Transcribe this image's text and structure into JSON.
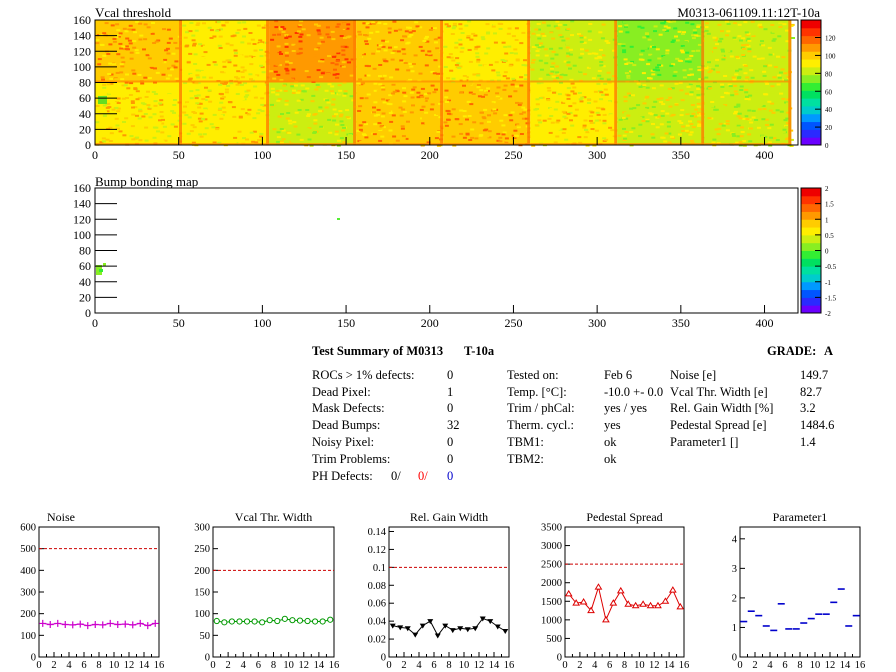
{
  "vcal_map": {
    "title": "Vcal threshold",
    "id_label": "M0313-061109.11:12T-10a",
    "x_ticks": [
      "0",
      "50",
      "100",
      "150",
      "200",
      "250",
      "300",
      "350",
      "400"
    ],
    "y_ticks": [
      "0",
      "20",
      "40",
      "60",
      "80",
      "100",
      "120",
      "140",
      "160"
    ],
    "z_ticks": [
      "0",
      "20",
      "40",
      "60",
      "80",
      "100",
      "120"
    ]
  },
  "bump_map": {
    "title": "Bump bonding map",
    "x_ticks": [
      "0",
      "50",
      "100",
      "150",
      "200",
      "250",
      "300",
      "350",
      "400"
    ],
    "y_ticks": [
      "0",
      "20",
      "40",
      "60",
      "80",
      "100",
      "120",
      "140",
      "160"
    ],
    "z_ticks": [
      "-2",
      "-1.5",
      "-1",
      "-0.5",
      "0",
      "0.5",
      "1",
      "1.5",
      "2"
    ]
  },
  "summary": {
    "title": "Test Summary of M0313",
    "mode": "T-10a",
    "grade_label": "GRADE:",
    "grade": "A",
    "col1": [
      {
        "label": "ROCs > 1% defects:",
        "value": "0"
      },
      {
        "label": "Dead Pixel:",
        "value": "1"
      },
      {
        "label": "Mask Defects:",
        "value": "0"
      },
      {
        "label": "Dead Bumps:",
        "value": "32"
      },
      {
        "label": "Noisy Pixel:",
        "value": "0"
      },
      {
        "label": "Trim Problems:",
        "value": "0"
      }
    ],
    "ph_label": "PH Defects:",
    "ph_values": [
      "0/",
      "0/",
      "0"
    ],
    "ph_colors": [
      "#000000",
      "#ff0000",
      "#0000cc"
    ],
    "col2": [
      {
        "label": "Tested on:",
        "value": "Feb 6"
      },
      {
        "label": "Temp. [°C]:",
        "value": "-10.0 +- 0.0"
      },
      {
        "label": "Trim / phCal:",
        "value": "yes / yes"
      },
      {
        "label": "Therm. cycl.:",
        "value": "yes"
      },
      {
        "label": "TBM1:",
        "value": "ok"
      },
      {
        "label": "TBM2:",
        "value": "ok"
      }
    ],
    "col3": [
      {
        "label": "Noise [e]",
        "value": "149.7"
      },
      {
        "label": "Vcal Thr. Width [e]",
        "value": "82.7"
      },
      {
        "label": "Rel. Gain Width [%]",
        "value": "3.2"
      },
      {
        "label": "Pedestal Spread [e]",
        "value": "1484.6"
      },
      {
        "label": "Parameter1 []",
        "value": "1.4"
      }
    ]
  },
  "chart_data": [
    {
      "type": "scatter",
      "title": "Noise",
      "x": [
        0,
        1,
        2,
        3,
        4,
        5,
        6,
        7,
        8,
        9,
        10,
        11,
        12,
        13,
        14,
        15
      ],
      "values": [
        155,
        150,
        155,
        150,
        148,
        152,
        145,
        150,
        148,
        155,
        150,
        152,
        148,
        155,
        145,
        155
      ],
      "ylim": [
        0,
        600
      ],
      "limit": 500,
      "color": "#cc00cc",
      "marker": "cross",
      "x_ticks": [
        "0",
        "2",
        "4",
        "6",
        "8",
        "10",
        "12",
        "14",
        "16"
      ],
      "y_ticks": [
        "0",
        "100",
        "200",
        "300",
        "400",
        "500",
        "600"
      ]
    },
    {
      "type": "line",
      "title": "Vcal Thr. Width",
      "x": [
        0,
        1,
        2,
        3,
        4,
        5,
        6,
        7,
        8,
        9,
        10,
        11,
        12,
        13,
        14,
        15
      ],
      "values": [
        83,
        80,
        82,
        82,
        82,
        82,
        80,
        85,
        83,
        88,
        85,
        84,
        83,
        82,
        82,
        86
      ],
      "ylim": [
        0,
        300
      ],
      "limit": 200,
      "color": "#009900",
      "marker": "circle",
      "x_ticks": [
        "0",
        "2",
        "4",
        "6",
        "8",
        "10",
        "12",
        "14",
        "16"
      ],
      "y_ticks": [
        "0",
        "50",
        "100",
        "150",
        "200",
        "250",
        "300"
      ]
    },
    {
      "type": "line",
      "title": "Rel. Gain Width",
      "x": [
        0,
        1,
        2,
        3,
        4,
        5,
        6,
        7,
        8,
        9,
        10,
        11,
        12,
        13,
        14,
        15
      ],
      "values": [
        0.035,
        0.033,
        0.032,
        0.025,
        0.035,
        0.04,
        0.024,
        0.035,
        0.03,
        0.032,
        0.031,
        0.032,
        0.043,
        0.04,
        0.034,
        0.029
      ],
      "ylim": [
        0,
        0.145
      ],
      "limit": 0.1,
      "color": "#000000",
      "marker": "tri-down",
      "x_ticks": [
        "0",
        "2",
        "4",
        "6",
        "8",
        "10",
        "12",
        "14",
        "16"
      ],
      "y_ticks": [
        "0",
        "0.02",
        "0.04",
        "0.06",
        "0.08",
        "0.1",
        "0.12",
        "0.14"
      ]
    },
    {
      "type": "line",
      "title": "Pedestal Spread",
      "x": [
        0,
        1,
        2,
        3,
        4,
        5,
        6,
        7,
        8,
        9,
        10,
        11,
        12,
        13,
        14,
        15
      ],
      "values": [
        1700,
        1450,
        1480,
        1250,
        1880,
        1000,
        1450,
        1780,
        1420,
        1380,
        1420,
        1380,
        1380,
        1500,
        1800,
        1350
      ],
      "ylim": [
        0,
        3500
      ],
      "limit": 2500,
      "color": "#dd0000",
      "marker": "tri-up",
      "x_ticks": [
        "0",
        "2",
        "4",
        "6",
        "8",
        "10",
        "12",
        "14",
        "16"
      ],
      "y_ticks": [
        "0",
        "500",
        "1000",
        "1500",
        "2000",
        "2500",
        "3000",
        "3500"
      ]
    },
    {
      "type": "scatter",
      "title": "Parameter1",
      "x": [
        0,
        1,
        2,
        3,
        4,
        5,
        6,
        7,
        8,
        9,
        10,
        11,
        12,
        13,
        14,
        15
      ],
      "values": [
        1.2,
        1.55,
        1.4,
        1.05,
        0.9,
        1.8,
        0.95,
        0.95,
        1.15,
        1.3,
        1.45,
        1.45,
        1.85,
        2.3,
        1.05,
        1.4
      ],
      "ylim": [
        0,
        4.4
      ],
      "color": "#0000cc",
      "marker": "dash",
      "x_ticks": [
        "0",
        "2",
        "4",
        "6",
        "8",
        "10",
        "12",
        "14",
        "16"
      ],
      "y_ticks": [
        "0",
        "1",
        "2",
        "3",
        "4"
      ]
    }
  ]
}
